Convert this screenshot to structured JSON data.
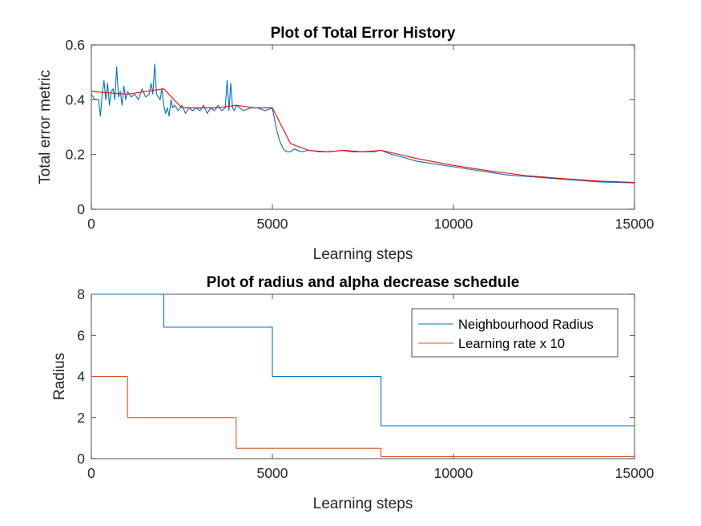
{
  "chart_data": [
    {
      "type": "line",
      "title": "Plot of Total Error History",
      "xlabel": "Learning steps",
      "ylabel": "Total error metric",
      "xlim": [
        0,
        15000
      ],
      "ylim": [
        0,
        0.6
      ],
      "xticks": [
        0,
        5000,
        10000,
        15000
      ],
      "yticks": [
        0,
        0.2,
        0.4,
        0.6
      ],
      "xtick_labels": [
        "0",
        "5000",
        "10000",
        "15000"
      ],
      "ytick_labels": [
        "0",
        "0.2",
        "0.4",
        "0.6"
      ],
      "grid": false,
      "series": [
        {
          "color": "#0072BD",
          "x": [
            0,
            100,
            200,
            250,
            300,
            350,
            400,
            450,
            500,
            550,
            600,
            650,
            700,
            750,
            800,
            850,
            900,
            950,
            1000,
            1100,
            1200,
            1300,
            1400,
            1500,
            1600,
            1650,
            1700,
            1750,
            1800,
            1850,
            1900,
            1950,
            2000,
            2050,
            2100,
            2150,
            2200,
            2250,
            2300,
            2400,
            2500,
            2600,
            2700,
            2800,
            2900,
            3000,
            3100,
            3200,
            3300,
            3400,
            3500,
            3600,
            3700,
            3750,
            3800,
            3850,
            3900,
            3950,
            4000,
            4100,
            4200,
            4400,
            4600,
            4800,
            5000,
            5100,
            5200,
            5300,
            5400,
            5500,
            5600,
            5800,
            6000,
            6300,
            6600,
            6900,
            7200,
            7500,
            7800,
            8000,
            8300,
            8600,
            9000,
            9500,
            10000,
            10500,
            11000,
            11500,
            12000,
            12500,
            13000,
            13500,
            14000,
            14500,
            15000
          ],
          "y": [
            0.42,
            0.4,
            0.4,
            0.34,
            0.42,
            0.47,
            0.4,
            0.46,
            0.38,
            0.43,
            0.44,
            0.4,
            0.52,
            0.41,
            0.43,
            0.38,
            0.45,
            0.4,
            0.43,
            0.41,
            0.42,
            0.4,
            0.44,
            0.41,
            0.42,
            0.46,
            0.42,
            0.53,
            0.42,
            0.41,
            0.4,
            0.44,
            0.38,
            0.35,
            0.37,
            0.34,
            0.4,
            0.37,
            0.38,
            0.36,
            0.38,
            0.35,
            0.37,
            0.36,
            0.37,
            0.36,
            0.38,
            0.35,
            0.37,
            0.36,
            0.38,
            0.36,
            0.37,
            0.47,
            0.36,
            0.46,
            0.37,
            0.36,
            0.38,
            0.37,
            0.36,
            0.37,
            0.37,
            0.36,
            0.37,
            0.3,
            0.25,
            0.22,
            0.21,
            0.21,
            0.22,
            0.21,
            0.215,
            0.21,
            0.21,
            0.215,
            0.21,
            0.21,
            0.21,
            0.215,
            0.2,
            0.19,
            0.175,
            0.165,
            0.155,
            0.145,
            0.135,
            0.125,
            0.12,
            0.115,
            0.11,
            0.105,
            0.1,
            0.098,
            0.096
          ]
        },
        {
          "color": "#FF0000",
          "x": [
            0,
            1000,
            2000,
            2500,
            3000,
            3500,
            4000,
            4500,
            5000,
            5500,
            6000,
            6500,
            7000,
            7500,
            8000,
            9000,
            10000,
            11000,
            12000,
            13000,
            14000,
            15000
          ],
          "y": [
            0.43,
            0.42,
            0.44,
            0.37,
            0.37,
            0.37,
            0.38,
            0.37,
            0.37,
            0.24,
            0.215,
            0.21,
            0.215,
            0.21,
            0.215,
            0.185,
            0.16,
            0.14,
            0.123,
            0.112,
            0.103,
            0.098
          ]
        }
      ]
    },
    {
      "type": "line",
      "title": "Plot of radius and alpha decrease schedule",
      "xlabel": "Learning steps",
      "ylabel": "Radius",
      "xlim": [
        0,
        15000
      ],
      "ylim": [
        0,
        8
      ],
      "xticks": [
        0,
        5000,
        10000,
        15000
      ],
      "yticks": [
        0,
        2,
        4,
        6,
        8
      ],
      "xtick_labels": [
        "0",
        "5000",
        "10000",
        "15000"
      ],
      "ytick_labels": [
        "0",
        "2",
        "4",
        "6",
        "8"
      ],
      "grid": false,
      "legend": "top-right",
      "series": [
        {
          "name": "Neighbourhood Radius",
          "color": "#0072BD",
          "x": [
            0,
            2000,
            2000,
            5000,
            5000,
            8000,
            8000,
            15000
          ],
          "y": [
            8,
            8,
            6.4,
            6.4,
            4.0,
            4.0,
            1.6,
            1.6
          ]
        },
        {
          "name": "Learning rate x 10",
          "color": "#D95319",
          "x": [
            0,
            1000,
            1000,
            4000,
            4000,
            8000,
            8000,
            15000
          ],
          "y": [
            4,
            4,
            2,
            2,
            0.5,
            0.5,
            0.1,
            0.1
          ]
        }
      ]
    }
  ]
}
